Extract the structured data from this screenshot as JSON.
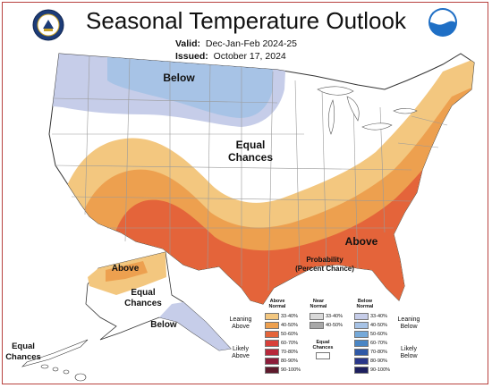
{
  "title": "Seasonal Temperature Outlook",
  "valid_label": "Valid:",
  "valid_value": "Dec-Jan-Feb 2024-25",
  "issued_label": "Issued:",
  "issued_value": "October 17, 2024",
  "left_logo": "noaa-dept-of-commerce-seal-icon",
  "right_logo": "noaa-logo-icon",
  "right_logo_text": "NOAA",
  "map_labels": {
    "below_conus": "Below",
    "equal_conus_line1": "Equal",
    "equal_conus_line2": "Chances",
    "above_conus": "Above",
    "above_alaska": "Above",
    "equal_alaska_line1": "Equal",
    "equal_alaska_line2": "Chances",
    "below_alaska": "Below",
    "equal_hawaii_line1": "Equal",
    "equal_hawaii_line2": "Chances"
  },
  "legend": {
    "title_line1": "Probability",
    "title_line2": "(Percent Chance)",
    "col_above_line1": "Above",
    "col_above_line2": "Normal",
    "col_near_line1": "Near",
    "col_near_line2": "Normal",
    "col_below_line1": "Below",
    "col_below_line2": "Normal",
    "above": [
      {
        "label": "33-40%",
        "color": "#f3c77f"
      },
      {
        "label": "40-50%",
        "color": "#eda04f"
      },
      {
        "label": "50-60%",
        "color": "#e4643a"
      },
      {
        "label": "60-70%",
        "color": "#d8403a"
      },
      {
        "label": "70-80%",
        "color": "#b8283b"
      },
      {
        "label": "80-90%",
        "color": "#8c1c3a"
      },
      {
        "label": "90-100%",
        "color": "#5e1a2c"
      }
    ],
    "near": [
      {
        "label": "33-40%",
        "color": "#d9d9d9"
      },
      {
        "label": "40-50%",
        "color": "#a8a8a8"
      }
    ],
    "equal_chances_line1": "Equal",
    "equal_chances_line2": "Chances",
    "equal_chances_color": "#ffffff",
    "below": [
      {
        "label": "33-40%",
        "color": "#c6cde9"
      },
      {
        "label": "40-50%",
        "color": "#a7c3e6"
      },
      {
        "label": "50-60%",
        "color": "#75a9d9"
      },
      {
        "label": "60-70%",
        "color": "#4a86c5"
      },
      {
        "label": "70-80%",
        "color": "#2f58a6"
      },
      {
        "label": "80-90%",
        "color": "#293689"
      },
      {
        "label": "90-100%",
        "color": "#1d1f5e"
      }
    ],
    "leaning_above_line1": "Leaning",
    "leaning_above_line2": "Above",
    "likely_above_line1": "Likely",
    "likely_above_line2": "Above",
    "leaning_below_line1": "Leaning",
    "leaning_below_line2": "Below",
    "likely_below_line1": "Likely",
    "likely_below_line2": "Below"
  },
  "colors": {
    "frame": "#b8423f",
    "state_lines": "#9a9a9a"
  }
}
